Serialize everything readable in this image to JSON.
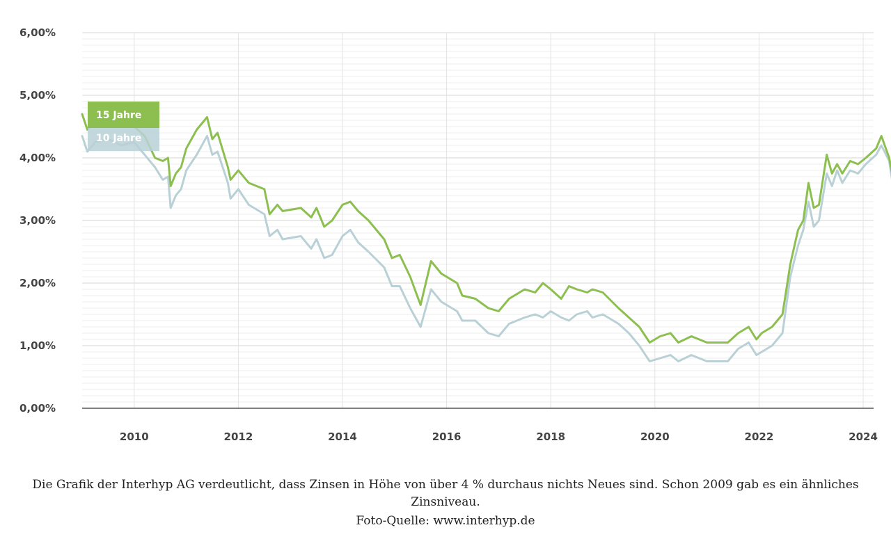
{
  "chart_data": {
    "type": "line",
    "x_unit": "year",
    "xlim": [
      2009.0,
      2024.2
    ],
    "ylim": [
      0,
      6
    ],
    "y_ticks": [
      {
        "value": 0,
        "label": "0,00%"
      },
      {
        "value": 1,
        "label": "1,00%"
      },
      {
        "value": 2,
        "label": "2,00%"
      },
      {
        "value": 3,
        "label": "3,00%"
      },
      {
        "value": 4,
        "label": "4,00%"
      },
      {
        "value": 5,
        "label": "5,00%"
      },
      {
        "value": 6,
        "label": "6,00%"
      }
    ],
    "x_ticks": [
      {
        "value": 2010,
        "label": "2010"
      },
      {
        "value": 2012,
        "label": "2012"
      },
      {
        "value": 2014,
        "label": "2014"
      },
      {
        "value": 2016,
        "label": "2016"
      },
      {
        "value": 2018,
        "label": "2018"
      },
      {
        "value": 2020,
        "label": "2020"
      },
      {
        "value": 2022,
        "label": "2022"
      },
      {
        "value": 2024,
        "label": "2024"
      }
    ],
    "grid": true,
    "legend_position": "top-left",
    "series": [
      {
        "name": "10 Jahre",
        "color": "#b9d1d6",
        "points": [
          [
            2009.0,
            4.35
          ],
          [
            2009.1,
            4.1
          ],
          [
            2009.25,
            4.25
          ],
          [
            2009.5,
            4.3
          ],
          [
            2009.75,
            4.2
          ],
          [
            2010.0,
            4.25
          ],
          [
            2010.2,
            4.05
          ],
          [
            2010.4,
            3.85
          ],
          [
            2010.55,
            3.65
          ],
          [
            2010.65,
            3.7
          ],
          [
            2010.7,
            3.2
          ],
          [
            2010.8,
            3.4
          ],
          [
            2010.9,
            3.5
          ],
          [
            2011.0,
            3.8
          ],
          [
            2011.2,
            4.05
          ],
          [
            2011.4,
            4.35
          ],
          [
            2011.5,
            4.05
          ],
          [
            2011.6,
            4.1
          ],
          [
            2011.8,
            3.6
          ],
          [
            2011.85,
            3.35
          ],
          [
            2012.0,
            3.5
          ],
          [
            2012.2,
            3.25
          ],
          [
            2012.5,
            3.1
          ],
          [
            2012.6,
            2.75
          ],
          [
            2012.75,
            2.85
          ],
          [
            2012.85,
            2.7
          ],
          [
            2013.2,
            2.75
          ],
          [
            2013.4,
            2.55
          ],
          [
            2013.5,
            2.7
          ],
          [
            2013.65,
            2.4
          ],
          [
            2013.8,
            2.45
          ],
          [
            2014.0,
            2.75
          ],
          [
            2014.15,
            2.85
          ],
          [
            2014.3,
            2.65
          ],
          [
            2014.5,
            2.5
          ],
          [
            2014.8,
            2.25
          ],
          [
            2014.95,
            1.95
          ],
          [
            2015.1,
            1.95
          ],
          [
            2015.3,
            1.6
          ],
          [
            2015.5,
            1.3
          ],
          [
            2015.7,
            1.9
          ],
          [
            2015.9,
            1.7
          ],
          [
            2016.2,
            1.55
          ],
          [
            2016.3,
            1.4
          ],
          [
            2016.55,
            1.4
          ],
          [
            2016.8,
            1.2
          ],
          [
            2017.0,
            1.15
          ],
          [
            2017.2,
            1.35
          ],
          [
            2017.5,
            1.45
          ],
          [
            2017.7,
            1.5
          ],
          [
            2017.85,
            1.45
          ],
          [
            2018.0,
            1.55
          ],
          [
            2018.2,
            1.45
          ],
          [
            2018.35,
            1.4
          ],
          [
            2018.5,
            1.5
          ],
          [
            2018.7,
            1.55
          ],
          [
            2018.8,
            1.45
          ],
          [
            2019.0,
            1.5
          ],
          [
            2019.3,
            1.35
          ],
          [
            2019.5,
            1.2
          ],
          [
            2019.7,
            1.0
          ],
          [
            2019.9,
            0.75
          ],
          [
            2020.1,
            0.8
          ],
          [
            2020.3,
            0.85
          ],
          [
            2020.45,
            0.75
          ],
          [
            2020.7,
            0.85
          ],
          [
            2021.0,
            0.75
          ],
          [
            2021.2,
            0.75
          ],
          [
            2021.4,
            0.75
          ],
          [
            2021.6,
            0.95
          ],
          [
            2021.8,
            1.05
          ],
          [
            2021.95,
            0.85
          ],
          [
            2022.05,
            0.9
          ],
          [
            2022.25,
            1.0
          ],
          [
            2022.45,
            1.2
          ],
          [
            2022.6,
            2.1
          ],
          [
            2022.75,
            2.6
          ],
          [
            2022.85,
            2.85
          ],
          [
            2022.95,
            3.3
          ],
          [
            2023.05,
            2.9
          ],
          [
            2023.15,
            3.0
          ],
          [
            2023.3,
            3.75
          ],
          [
            2023.4,
            3.55
          ],
          [
            2023.5,
            3.8
          ],
          [
            2023.6,
            3.6
          ],
          [
            2023.75,
            3.8
          ],
          [
            2023.9,
            3.75
          ],
          [
            2024.05,
            3.9
          ],
          [
            2024.25,
            4.05
          ],
          [
            2024.35,
            4.2
          ],
          [
            2024.5,
            3.95
          ],
          [
            2024.6,
            3.4
          ],
          [
            2024.68,
            3.45
          ]
        ]
      },
      {
        "name": "15 Jahre",
        "color": "#8cbf4f",
        "points": [
          [
            2009.0,
            4.7
          ],
          [
            2009.1,
            4.45
          ],
          [
            2009.25,
            4.6
          ],
          [
            2009.5,
            4.65
          ],
          [
            2009.75,
            4.55
          ],
          [
            2010.0,
            4.5
          ],
          [
            2010.2,
            4.35
          ],
          [
            2010.4,
            4.0
          ],
          [
            2010.55,
            3.95
          ],
          [
            2010.65,
            4.0
          ],
          [
            2010.7,
            3.55
          ],
          [
            2010.8,
            3.75
          ],
          [
            2010.9,
            3.85
          ],
          [
            2011.0,
            4.15
          ],
          [
            2011.2,
            4.45
          ],
          [
            2011.4,
            4.65
          ],
          [
            2011.5,
            4.3
          ],
          [
            2011.6,
            4.4
          ],
          [
            2011.8,
            3.85
          ],
          [
            2011.85,
            3.65
          ],
          [
            2012.0,
            3.8
          ],
          [
            2012.2,
            3.6
          ],
          [
            2012.5,
            3.5
          ],
          [
            2012.6,
            3.1
          ],
          [
            2012.75,
            3.25
          ],
          [
            2012.85,
            3.15
          ],
          [
            2013.2,
            3.2
          ],
          [
            2013.4,
            3.05
          ],
          [
            2013.5,
            3.2
          ],
          [
            2013.65,
            2.9
          ],
          [
            2013.8,
            3.0
          ],
          [
            2014.0,
            3.25
          ],
          [
            2014.15,
            3.3
          ],
          [
            2014.3,
            3.15
          ],
          [
            2014.5,
            3.0
          ],
          [
            2014.8,
            2.7
          ],
          [
            2014.95,
            2.4
          ],
          [
            2015.1,
            2.45
          ],
          [
            2015.3,
            2.1
          ],
          [
            2015.5,
            1.65
          ],
          [
            2015.7,
            2.35
          ],
          [
            2015.9,
            2.15
          ],
          [
            2016.2,
            2.0
          ],
          [
            2016.3,
            1.8
          ],
          [
            2016.55,
            1.75
          ],
          [
            2016.8,
            1.6
          ],
          [
            2017.0,
            1.55
          ],
          [
            2017.2,
            1.75
          ],
          [
            2017.5,
            1.9
          ],
          [
            2017.7,
            1.85
          ],
          [
            2017.85,
            2.0
          ],
          [
            2018.0,
            1.9
          ],
          [
            2018.2,
            1.75
          ],
          [
            2018.35,
            1.95
          ],
          [
            2018.5,
            1.9
          ],
          [
            2018.7,
            1.85
          ],
          [
            2018.8,
            1.9
          ],
          [
            2019.0,
            1.85
          ],
          [
            2019.3,
            1.6
          ],
          [
            2019.5,
            1.45
          ],
          [
            2019.7,
            1.3
          ],
          [
            2019.9,
            1.05
          ],
          [
            2020.1,
            1.15
          ],
          [
            2020.3,
            1.2
          ],
          [
            2020.45,
            1.05
          ],
          [
            2020.7,
            1.15
          ],
          [
            2021.0,
            1.05
          ],
          [
            2021.2,
            1.05
          ],
          [
            2021.4,
            1.05
          ],
          [
            2021.6,
            1.2
          ],
          [
            2021.8,
            1.3
          ],
          [
            2021.95,
            1.1
          ],
          [
            2022.05,
            1.2
          ],
          [
            2022.25,
            1.3
          ],
          [
            2022.45,
            1.5
          ],
          [
            2022.6,
            2.3
          ],
          [
            2022.75,
            2.85
          ],
          [
            2022.85,
            3.0
          ],
          [
            2022.95,
            3.6
          ],
          [
            2023.05,
            3.2
          ],
          [
            2023.15,
            3.25
          ],
          [
            2023.3,
            4.05
          ],
          [
            2023.4,
            3.75
          ],
          [
            2023.5,
            3.9
          ],
          [
            2023.6,
            3.75
          ],
          [
            2023.75,
            3.95
          ],
          [
            2023.9,
            3.9
          ],
          [
            2024.05,
            4.0
          ],
          [
            2024.25,
            4.15
          ],
          [
            2024.35,
            4.35
          ],
          [
            2024.5,
            4.0
          ],
          [
            2024.6,
            3.55
          ],
          [
            2024.68,
            3.55
          ]
        ]
      }
    ]
  },
  "caption": {
    "text": "Die Grafik der Interhyp AG verdeutlicht, dass Zinsen in Höhe von über 4 % durchaus nichts Neues sind. Schon 2009 gab es ein ähnliches Zinsniveau.",
    "source": "Foto-Quelle: www.interhyp.de"
  }
}
